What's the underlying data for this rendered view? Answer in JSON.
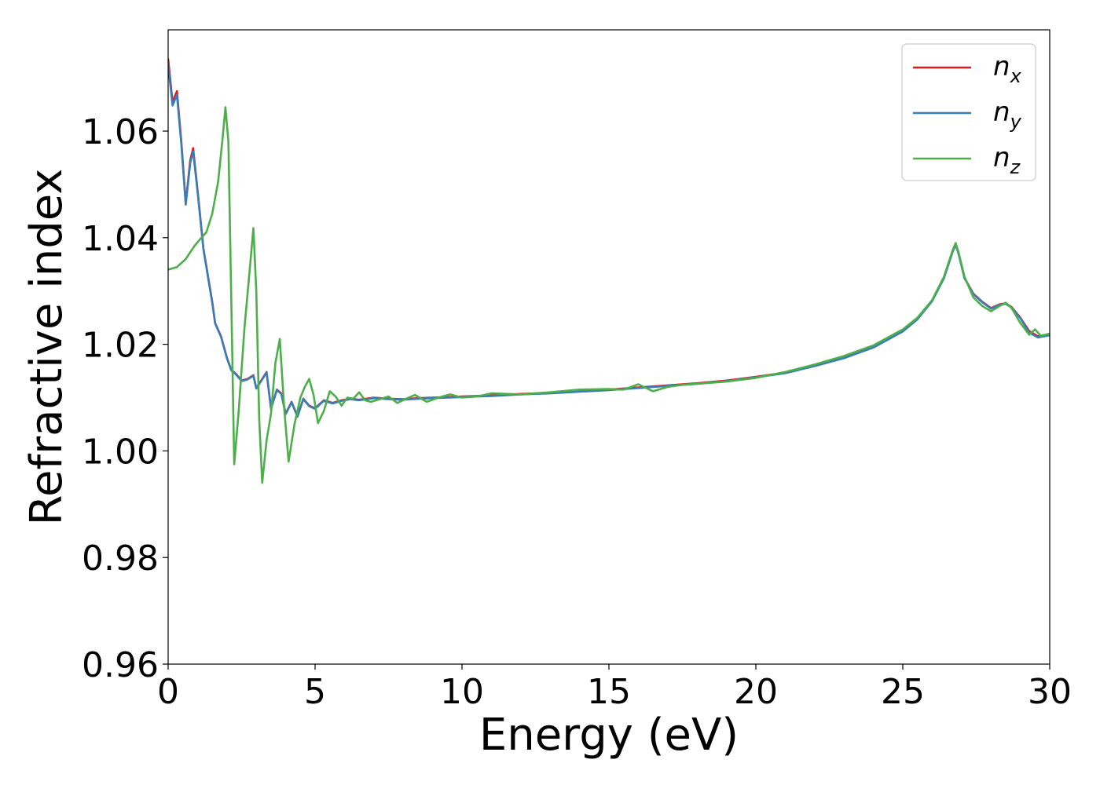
{
  "chart_data": {
    "type": "line",
    "title": "",
    "xlabel": "Energy (eV)",
    "ylabel": "Refractive index",
    "xlim": [
      0,
      30
    ],
    "ylim": [
      0.96,
      1.079
    ],
    "xticks": [
      0,
      5,
      10,
      15,
      20,
      25,
      30
    ],
    "xtick_labels": [
      "0",
      "5",
      "10",
      "15",
      "20",
      "25",
      "30"
    ],
    "yticks": [
      0.96,
      0.98,
      1.0,
      1.02,
      1.04,
      1.06
    ],
    "ytick_labels": [
      "0.96",
      "0.98",
      "1.00",
      "1.02",
      "1.04",
      "1.06"
    ],
    "grid": false,
    "legend_position": "top-right",
    "series": [
      {
        "name": "n_x",
        "legend_base": "n",
        "legend_sub": "x",
        "color": "#e41a1c",
        "x": [
          0,
          0.15,
          0.3,
          0.45,
          0.6,
          0.75,
          0.85,
          1.0,
          1.2,
          1.5,
          1.6,
          1.8,
          2.0,
          2.15,
          2.3,
          2.5,
          2.7,
          2.9,
          3.0,
          3.2,
          3.35,
          3.5,
          3.7,
          3.85,
          4.0,
          4.2,
          4.4,
          4.6,
          4.8,
          5.0,
          5.3,
          5.6,
          5.9,
          6.2,
          6.5,
          7.0,
          7.5,
          8.0,
          8.5,
          9.0,
          10.0,
          11.0,
          12.0,
          13.0,
          14.0,
          15.0,
          16.0,
          17.0,
          18.0,
          19.0,
          20.0,
          21.0,
          22.0,
          23.0,
          24.0,
          25.0,
          25.5,
          26.0,
          26.4,
          26.7,
          26.8,
          26.9,
          27.1,
          27.4,
          27.7,
          28.0,
          28.3,
          28.5,
          28.7,
          29.0,
          29.3,
          29.6,
          30.0
        ],
        "y": [
          1.0735,
          1.0655,
          1.0675,
          1.058,
          1.0465,
          1.0545,
          1.0568,
          1.049,
          1.038,
          1.028,
          1.024,
          1.0215,
          1.0175,
          1.0152,
          1.0145,
          1.0132,
          1.0135,
          1.0142,
          1.0118,
          1.0135,
          1.0148,
          1.008,
          1.0115,
          1.0108,
          1.007,
          1.0092,
          1.0065,
          1.0098,
          1.0085,
          1.008,
          1.0095,
          1.009,
          1.0095,
          1.0098,
          1.0096,
          1.01,
          1.0098,
          1.0097,
          1.0099,
          1.01,
          1.0102,
          1.0104,
          1.0107,
          1.0109,
          1.0112,
          1.0115,
          1.0119,
          1.0123,
          1.0127,
          1.0132,
          1.0139,
          1.0147,
          1.016,
          1.0175,
          1.0195,
          1.0225,
          1.0248,
          1.0282,
          1.0325,
          1.0375,
          1.0388,
          1.037,
          1.0325,
          1.0295,
          1.028,
          1.0268,
          1.0275,
          1.0277,
          1.027,
          1.025,
          1.0225,
          1.0215,
          1.0218
        ]
      },
      {
        "name": "n_y",
        "legend_base": "n",
        "legend_sub": "y",
        "color": "#377eb8",
        "x": [
          0,
          0.15,
          0.3,
          0.45,
          0.6,
          0.75,
          0.85,
          1.0,
          1.2,
          1.5,
          1.6,
          1.8,
          2.0,
          2.15,
          2.3,
          2.5,
          2.7,
          2.9,
          3.0,
          3.2,
          3.35,
          3.5,
          3.7,
          3.85,
          4.0,
          4.2,
          4.4,
          4.6,
          4.8,
          5.0,
          5.3,
          5.6,
          5.9,
          6.2,
          6.5,
          7.0,
          7.5,
          8.0,
          8.5,
          9.0,
          10.0,
          11.0,
          12.0,
          13.0,
          14.0,
          15.0,
          16.0,
          17.0,
          18.0,
          19.0,
          20.0,
          21.0,
          22.0,
          23.0,
          24.0,
          25.0,
          25.5,
          26.0,
          26.4,
          26.7,
          26.8,
          26.9,
          27.1,
          27.4,
          27.7,
          28.0,
          28.3,
          28.5,
          28.7,
          29.0,
          29.3,
          29.6,
          30.0
        ],
        "y": [
          1.0725,
          1.0648,
          1.0668,
          1.0575,
          1.0462,
          1.054,
          1.0562,
          1.0487,
          1.0378,
          1.0278,
          1.0239,
          1.0214,
          1.0174,
          1.0151,
          1.0144,
          1.0131,
          1.0134,
          1.0141,
          1.0117,
          1.0134,
          1.0147,
          1.0079,
          1.0114,
          1.0107,
          1.0069,
          1.0091,
          1.0064,
          1.0097,
          1.0084,
          1.0079,
          1.0094,
          1.0089,
          1.0094,
          1.0097,
          1.0095,
          1.0099,
          1.0097,
          1.0096,
          1.0098,
          1.0099,
          1.0101,
          1.0103,
          1.0106,
          1.0108,
          1.0111,
          1.0114,
          1.0118,
          1.0122,
          1.0126,
          1.0131,
          1.0138,
          1.0146,
          1.0159,
          1.0174,
          1.0194,
          1.0224,
          1.0247,
          1.0281,
          1.0324,
          1.0374,
          1.0387,
          1.0369,
          1.0324,
          1.0294,
          1.0279,
          1.0267,
          1.0274,
          1.0276,
          1.0269,
          1.0249,
          1.0222,
          1.0213,
          1.0217
        ]
      },
      {
        "name": "n_z",
        "legend_base": "n",
        "legend_sub": "z",
        "color": "#4daf4a",
        "x": [
          0,
          0.3,
          0.6,
          0.9,
          1.1,
          1.3,
          1.5,
          1.7,
          1.85,
          1.95,
          2.05,
          2.15,
          2.25,
          2.4,
          2.6,
          2.75,
          2.9,
          3.0,
          3.1,
          3.2,
          3.35,
          3.5,
          3.65,
          3.8,
          3.95,
          4.1,
          4.3,
          4.5,
          4.65,
          4.8,
          4.95,
          5.1,
          5.3,
          5.5,
          5.7,
          5.9,
          6.1,
          6.3,
          6.5,
          6.7,
          6.9,
          7.2,
          7.5,
          7.8,
          8.1,
          8.4,
          8.8,
          9.2,
          9.6,
          10.0,
          10.5,
          11.0,
          12.0,
          13.0,
          14.0,
          15.0,
          15.5,
          16.0,
          16.5,
          17.0,
          17.5,
          18.0,
          19.0,
          20.0,
          21.0,
          22.0,
          23.0,
          24.0,
          25.0,
          25.5,
          26.0,
          26.4,
          26.7,
          26.8,
          26.9,
          27.1,
          27.4,
          27.7,
          28.0,
          28.3,
          28.5,
          28.7,
          29.0,
          29.3,
          29.5,
          29.7,
          30.0
        ],
        "y": [
          1.034,
          1.0345,
          1.036,
          1.0385,
          1.0398,
          1.041,
          1.0445,
          1.0505,
          1.0585,
          1.0645,
          1.058,
          1.028,
          0.9975,
          1.0075,
          1.0232,
          1.0325,
          1.0418,
          1.03,
          1.006,
          0.994,
          1.002,
          1.007,
          1.0165,
          1.021,
          1.008,
          0.998,
          1.005,
          1.01,
          1.012,
          1.0135,
          1.0105,
          1.0052,
          1.0075,
          1.0112,
          1.0102,
          1.0085,
          1.01,
          1.0098,
          1.011,
          1.0095,
          1.0092,
          1.0097,
          1.0102,
          1.009,
          1.0098,
          1.0105,
          1.0092,
          1.01,
          1.0106,
          1.01,
          1.0102,
          1.0108,
          1.0106,
          1.011,
          1.0115,
          1.0116,
          1.0115,
          1.0125,
          1.0112,
          1.012,
          1.0124,
          1.0126,
          1.013,
          1.0137,
          1.0148,
          1.0162,
          1.0178,
          1.0198,
          1.0228,
          1.025,
          1.0283,
          1.0327,
          1.0377,
          1.039,
          1.0372,
          1.0327,
          1.0288,
          1.0272,
          1.0262,
          1.0272,
          1.0278,
          1.0268,
          1.024,
          1.0218,
          1.0228,
          1.0216,
          1.022
        ]
      }
    ]
  }
}
